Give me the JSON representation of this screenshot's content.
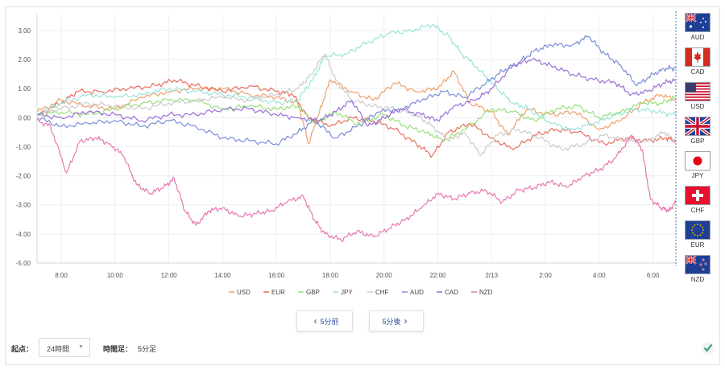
{
  "chart_data": {
    "type": "line",
    "y_ticks": [
      "3.00",
      "2.00",
      "1.00",
      "0.00",
      "-1.00",
      "-2.00",
      "-3.00",
      "-4.00",
      "-5.00"
    ],
    "ylim": [
      -5,
      3.55
    ],
    "x_ticks": [
      "8:00",
      "10:00",
      "12:00",
      "14:00",
      "16:00",
      "18:00",
      "20:00",
      "22:00",
      "2/13",
      "2:00",
      "4:00",
      "6:00"
    ],
    "x_tick_hours": [
      8,
      10,
      12,
      14,
      16,
      18,
      20,
      22,
      24,
      26,
      28,
      30
    ],
    "xlim_hours": [
      7.1,
      30.85
    ],
    "grid": true,
    "series": [
      {
        "name": "USD",
        "color": "#f0a06a",
        "points": [
          [
            7.1,
            0.2
          ],
          [
            8,
            0.6
          ],
          [
            9,
            0.4
          ],
          [
            10,
            0.3
          ],
          [
            11,
            0.7
          ],
          [
            12,
            0.9
          ],
          [
            13,
            1.0
          ],
          [
            14,
            1.0
          ],
          [
            15,
            0.8
          ],
          [
            16,
            0.7
          ],
          [
            16.8,
            0.5
          ],
          [
            17.2,
            -0.9
          ],
          [
            17.6,
            0.2
          ],
          [
            18,
            1.3
          ],
          [
            18.8,
            0.9
          ],
          [
            19.6,
            0.6
          ],
          [
            20.4,
            1.2
          ],
          [
            21.2,
            0.9
          ],
          [
            22,
            1.0
          ],
          [
            22.6,
            1.6
          ],
          [
            23.2,
            0.5
          ],
          [
            24,
            0.2
          ],
          [
            24.6,
            -0.6
          ],
          [
            25.3,
            0.3
          ],
          [
            26.2,
            0.1
          ],
          [
            27.1,
            0.2
          ],
          [
            28,
            -0.4
          ],
          [
            28.8,
            -0.1
          ],
          [
            29.6,
            0.5
          ],
          [
            30.3,
            0.8
          ],
          [
            30.85,
            0.6
          ]
        ]
      },
      {
        "name": "EUR",
        "color": "#e87060",
        "points": [
          [
            7.1,
            0.1
          ],
          [
            8,
            0.5
          ],
          [
            8.6,
            0.9
          ],
          [
            9.5,
            0.9
          ],
          [
            10.5,
            1.0
          ],
          [
            11.5,
            1.1
          ],
          [
            12.2,
            1.3
          ],
          [
            13,
            1.1
          ],
          [
            14,
            0.9
          ],
          [
            15,
            1.1
          ],
          [
            16,
            0.9
          ],
          [
            16.6,
            0.8
          ],
          [
            17.2,
            0.0
          ],
          [
            18,
            -0.3
          ],
          [
            18.8,
            0.0
          ],
          [
            19.6,
            -0.1
          ],
          [
            20.4,
            -0.4
          ],
          [
            21.2,
            -0.9
          ],
          [
            21.8,
            -1.3
          ],
          [
            22.4,
            -0.5
          ],
          [
            23.2,
            -0.2
          ],
          [
            24,
            -0.7
          ],
          [
            24.8,
            -1.1
          ],
          [
            25.6,
            -0.6
          ],
          [
            26.4,
            -0.4
          ],
          [
            27.2,
            -0.5
          ],
          [
            28.2,
            -0.9
          ],
          [
            29,
            -0.7
          ],
          [
            29.8,
            -0.8
          ],
          [
            30.5,
            -0.7
          ],
          [
            30.85,
            -0.8
          ]
        ]
      },
      {
        "name": "GBP",
        "color": "#98e07c",
        "points": [
          [
            7.1,
            0.1
          ],
          [
            8,
            0.2
          ],
          [
            9,
            0.1
          ],
          [
            10,
            0.3
          ],
          [
            11,
            0.5
          ],
          [
            12,
            0.6
          ],
          [
            13,
            0.6
          ],
          [
            14,
            0.3
          ],
          [
            15,
            0.4
          ],
          [
            16,
            0.3
          ],
          [
            16.8,
            0.4
          ],
          [
            17.4,
            -0.2
          ],
          [
            18.2,
            0.2
          ],
          [
            19,
            -0.2
          ],
          [
            20,
            0.1
          ],
          [
            20.8,
            -0.3
          ],
          [
            21.6,
            -0.5
          ],
          [
            22.2,
            -0.8
          ],
          [
            23,
            -0.4
          ],
          [
            24,
            0.3
          ],
          [
            24.8,
            0.2
          ],
          [
            25.6,
            -0.1
          ],
          [
            26.4,
            0.3
          ],
          [
            27.2,
            0.4
          ],
          [
            28,
            0.0
          ],
          [
            28.8,
            0.2
          ],
          [
            29.6,
            0.5
          ],
          [
            30.3,
            0.5
          ],
          [
            30.85,
            0.7
          ]
        ]
      },
      {
        "name": "JPY",
        "color": "#98e4da",
        "points": [
          [
            7.1,
            0.1
          ],
          [
            8,
            0.5
          ],
          [
            9,
            0.8
          ],
          [
            10,
            0.7
          ],
          [
            11,
            0.8
          ],
          [
            12,
            1.0
          ],
          [
            13,
            0.9
          ],
          [
            14,
            0.8
          ],
          [
            15,
            0.7
          ],
          [
            16,
            0.5
          ],
          [
            16.8,
            0.6
          ],
          [
            17.4,
            1.4
          ],
          [
            17.8,
            2.1
          ],
          [
            18.6,
            2.2
          ],
          [
            19.4,
            2.6
          ],
          [
            20.2,
            2.9
          ],
          [
            21,
            3.0
          ],
          [
            21.8,
            3.2
          ],
          [
            22.4,
            2.8
          ],
          [
            22.9,
            2.2
          ],
          [
            23.6,
            1.6
          ],
          [
            24.2,
            1.0
          ],
          [
            24.8,
            0.5
          ],
          [
            25.4,
            0.3
          ],
          [
            26.2,
            -0.2
          ],
          [
            27,
            -0.4
          ],
          [
            27.8,
            -0.2
          ],
          [
            28.6,
            0.1
          ],
          [
            29.4,
            0.3
          ],
          [
            30.2,
            0.2
          ],
          [
            30.85,
            0.1
          ]
        ]
      },
      {
        "name": "CHF",
        "color": "#cccccc",
        "points": [
          [
            7.1,
            0.1
          ],
          [
            8,
            0.3
          ],
          [
            9,
            0.5
          ],
          [
            10,
            0.4
          ],
          [
            11,
            0.3
          ],
          [
            12,
            0.5
          ],
          [
            13,
            0.6
          ],
          [
            14,
            0.7
          ],
          [
            15,
            0.6
          ],
          [
            16,
            0.8
          ],
          [
            16.8,
            1.0
          ],
          [
            17.3,
            1.5
          ],
          [
            17.8,
            2.2
          ],
          [
            18.2,
            1.3
          ],
          [
            18.8,
            0.6
          ],
          [
            19.6,
            0.4
          ],
          [
            20.4,
            0.3
          ],
          [
            21.2,
            0.1
          ],
          [
            21.8,
            -0.3
          ],
          [
            22.4,
            -0.8
          ],
          [
            23,
            -0.5
          ],
          [
            23.6,
            -1.3
          ],
          [
            24.2,
            -0.6
          ],
          [
            25,
            -0.4
          ],
          [
            25.8,
            -0.7
          ],
          [
            26.6,
            -1.1
          ],
          [
            27.4,
            -0.9
          ],
          [
            28.2,
            -0.6
          ],
          [
            29,
            -0.8
          ],
          [
            29.8,
            -0.8
          ],
          [
            30.4,
            -0.5
          ],
          [
            30.85,
            -0.8
          ]
        ]
      },
      {
        "name": "AUD",
        "color": "#7b8fd8",
        "points": [
          [
            7.1,
            0.0
          ],
          [
            8,
            -0.3
          ],
          [
            9,
            -0.2
          ],
          [
            10,
            -0.1
          ],
          [
            11,
            -0.3
          ],
          [
            12,
            -0.1
          ],
          [
            13,
            -0.3
          ],
          [
            14,
            -0.7
          ],
          [
            15,
            -0.8
          ],
          [
            16,
            -0.9
          ],
          [
            16.8,
            -0.5
          ],
          [
            17.4,
            -0.1
          ],
          [
            18.2,
            -0.7
          ],
          [
            19,
            -0.3
          ],
          [
            19.8,
            0.2
          ],
          [
            20.6,
            0.3
          ],
          [
            21.4,
            0.6
          ],
          [
            22.2,
            0.9
          ],
          [
            23,
            0.7
          ],
          [
            23.8,
            1.2
          ],
          [
            24.4,
            1.6
          ],
          [
            25,
            1.9
          ],
          [
            25.6,
            2.3
          ],
          [
            26.2,
            2.5
          ],
          [
            27,
            2.5
          ],
          [
            27.6,
            2.8
          ],
          [
            28.2,
            2.2
          ],
          [
            28.8,
            1.8
          ],
          [
            29.4,
            1.1
          ],
          [
            30,
            1.5
          ],
          [
            30.5,
            1.7
          ],
          [
            30.85,
            1.7
          ]
        ]
      },
      {
        "name": "CAD",
        "color": "#9a70d8",
        "points": [
          [
            7.1,
            0.1
          ],
          [
            8,
            0.0
          ],
          [
            9,
            0.2
          ],
          [
            10,
            0.1
          ],
          [
            11,
            -0.1
          ],
          [
            12,
            0.1
          ],
          [
            13,
            0.1
          ],
          [
            14,
            0.3
          ],
          [
            15,
            0.3
          ],
          [
            16,
            0.1
          ],
          [
            16.8,
            0.0
          ],
          [
            17.6,
            -0.1
          ],
          [
            18.2,
            0.2
          ],
          [
            18.8,
            0.6
          ],
          [
            19.4,
            -0.3
          ],
          [
            20,
            0.0
          ],
          [
            20.6,
            0.3
          ],
          [
            21.4,
            0.1
          ],
          [
            22,
            -0.1
          ],
          [
            22.6,
            0.4
          ],
          [
            23.4,
            0.6
          ],
          [
            24,
            1.0
          ],
          [
            24.8,
            1.8
          ],
          [
            25.5,
            2.0
          ],
          [
            26.2,
            1.8
          ],
          [
            27,
            1.5
          ],
          [
            27.8,
            1.3
          ],
          [
            28.6,
            1.2
          ],
          [
            29.2,
            0.8
          ],
          [
            29.8,
            0.9
          ],
          [
            30.4,
            1.2
          ],
          [
            30.85,
            1.3
          ]
        ]
      },
      {
        "name": "NZD",
        "color": "#e878b0",
        "points": [
          [
            7.1,
            -0.1
          ],
          [
            7.6,
            -0.3
          ],
          [
            8.2,
            -1.9
          ],
          [
            8.7,
            -0.8
          ],
          [
            9.3,
            -0.7
          ],
          [
            9.8,
            -0.9
          ],
          [
            10.3,
            -1.3
          ],
          [
            10.8,
            -2.3
          ],
          [
            11.3,
            -2.6
          ],
          [
            11.8,
            -2.4
          ],
          [
            12.2,
            -2.1
          ],
          [
            12.6,
            -3.2
          ],
          [
            13,
            -3.7
          ],
          [
            13.5,
            -3.2
          ],
          [
            14,
            -3.1
          ],
          [
            14.6,
            -3.4
          ],
          [
            15.2,
            -3.3
          ],
          [
            15.8,
            -3.2
          ],
          [
            16.4,
            -2.9
          ],
          [
            17,
            -2.7
          ],
          [
            17.4,
            -3.5
          ],
          [
            17.8,
            -4.0
          ],
          [
            18.4,
            -4.2
          ],
          [
            19,
            -3.9
          ],
          [
            19.6,
            -4.1
          ],
          [
            20.2,
            -3.8
          ],
          [
            20.8,
            -3.5
          ],
          [
            21.4,
            -3.1
          ],
          [
            22,
            -2.6
          ],
          [
            22.6,
            -2.8
          ],
          [
            23.2,
            -2.6
          ],
          [
            23.8,
            -2.5
          ],
          [
            24.4,
            -2.9
          ],
          [
            25,
            -2.5
          ],
          [
            25.6,
            -2.4
          ],
          [
            26.2,
            -2.2
          ],
          [
            26.8,
            -2.4
          ],
          [
            27.4,
            -2.0
          ],
          [
            28,
            -1.8
          ],
          [
            28.6,
            -1.4
          ],
          [
            29.2,
            -0.6
          ],
          [
            29.6,
            -1.1
          ],
          [
            29.9,
            -2.8
          ],
          [
            30.3,
            -3.1
          ],
          [
            30.6,
            -3.2
          ],
          [
            30.85,
            -2.9
          ]
        ]
      }
    ],
    "legend_position": "bottom"
  },
  "flags": [
    {
      "code": "AUD",
      "icon": "australia-flag-icon"
    },
    {
      "code": "CAD",
      "icon": "canada-flag-icon"
    },
    {
      "code": "USD",
      "icon": "usa-flag-icon"
    },
    {
      "code": "GBP",
      "icon": "uk-flag-icon"
    },
    {
      "code": "JPY",
      "icon": "japan-flag-icon"
    },
    {
      "code": "CHF",
      "icon": "switzerland-flag-icon"
    },
    {
      "code": "EUR",
      "icon": "eu-flag-icon"
    },
    {
      "code": "NZD",
      "icon": "new-zealand-flag-icon"
    }
  ],
  "controls": {
    "prev_label": "5分前",
    "next_label": "5分後",
    "start_label": "起点：",
    "start_value": "24時間",
    "timeframe_label": "時間足：",
    "timeframe_value": "5分足"
  }
}
